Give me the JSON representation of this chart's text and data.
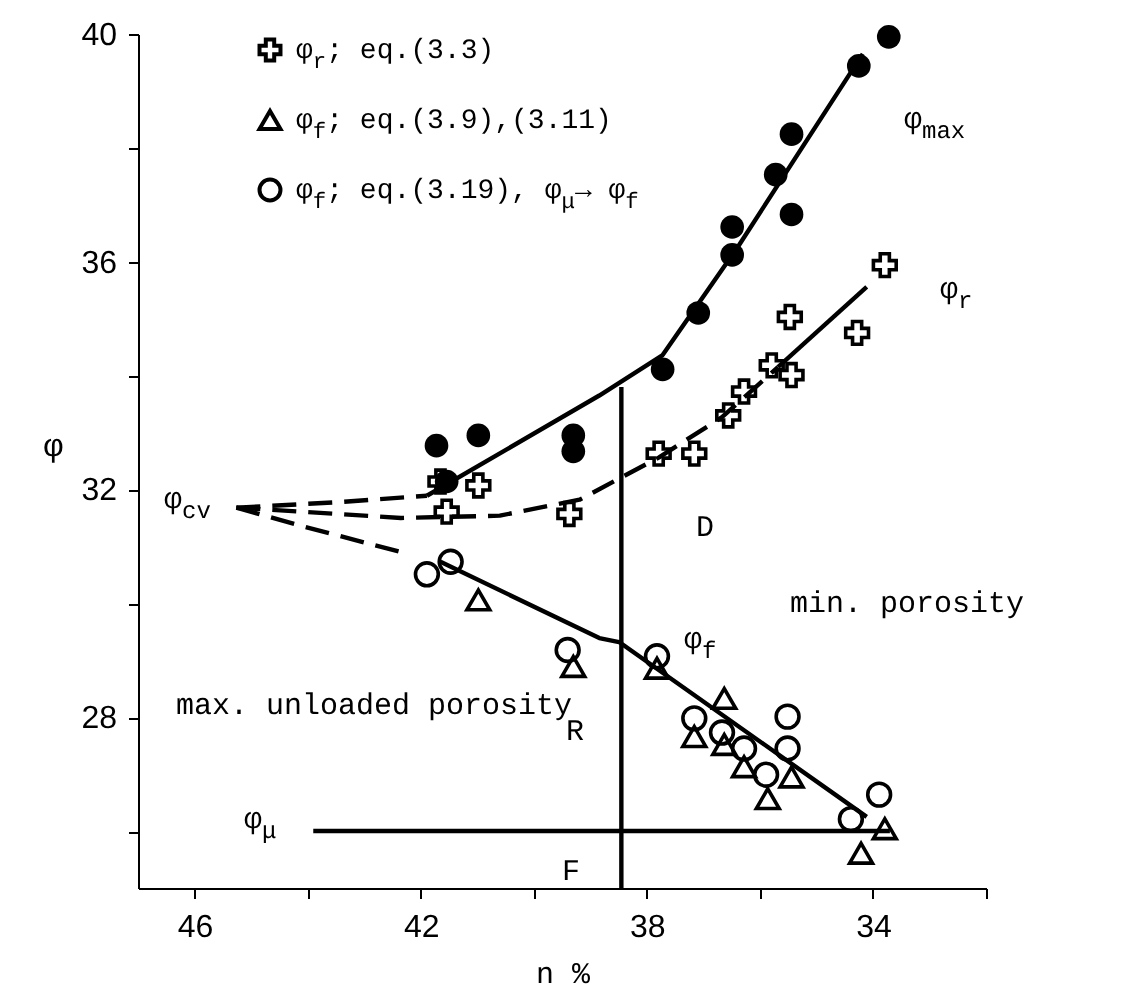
{
  "chart_data": {
    "type": "scatter",
    "xlabel": "n %",
    "ylabel": "φ",
    "xlim": [
      47,
      32
    ],
    "xticks": [
      46,
      {
        "value": 44,
        "label": null
      },
      42,
      {
        "value": 40,
        "label": null
      },
      38,
      {
        "value": 36,
        "label": null
      },
      34,
      {
        "value": 32,
        "label": null
      }
    ],
    "ylim": [
      25,
      40
    ],
    "yticks": [
      {
        "value": 26,
        "label": null
      },
      28,
      {
        "value": 30,
        "label": null
      },
      32,
      {
        "value": 34,
        "label": null
      },
      36,
      {
        "value": 38,
        "label": null
      },
      40
    ],
    "grid": false,
    "legend": "top left",
    "series": [
      {
        "name": "φ$_{r}$; eq.(3.3)",
        "marker": "cross",
        "color": "#000000",
        "x": [
          33.79,
          35.47,
          34.28,
          35.79,
          35.44,
          36.28,
          36.56,
          37.16,
          37.79,
          40.98,
          41.65,
          39.37,
          41.54
        ],
        "values": [
          35.94,
          35.03,
          34.75,
          34.18,
          34.01,
          33.72,
          33.3,
          32.63,
          32.63,
          32.07,
          32.14,
          31.57,
          31.61
        ]
      },
      {
        "name": "φ$_{f}$; eq.(3.9),(3.11)",
        "marker": "triangle",
        "color": "#000000",
        "x": [
          40.98,
          39.3,
          37.82,
          36.63,
          37.16,
          36.63,
          36.28,
          35.86,
          35.44,
          34.21,
          33.79
        ],
        "values": [
          30.06,
          28.89,
          28.86,
          28.33,
          27.66,
          27.52,
          27.13,
          26.57,
          26.95,
          25.61,
          26.04
        ]
      },
      {
        "name": "φ$_{f}$; eq.(3.19), φ$_{μ}$→ φ$_{f}$",
        "marker": "circle",
        "color": "#000000",
        "x": [
          41.89,
          41.47,
          39.4,
          37.82,
          37.16,
          36.67,
          36.28,
          35.89,
          35.51,
          35.51,
          34.39,
          33.89
        ],
        "values": [
          30.51,
          30.73,
          29.18,
          29.07,
          27.98,
          27.73,
          27.45,
          26.99,
          28.01,
          27.45,
          26.21,
          26.64
        ]
      },
      {
        "marker": "circle",
        "color": "#000000",
        "x": [
          41.72,
          40.98,
          39.3,
          39.3,
          41.54,
          37.72,
          37.09,
          36.49,
          36.49,
          35.72,
          35.44,
          35.44,
          34.25,
          33.72
        ],
        "values": [
          32.77,
          32.95,
          32.95,
          32.67,
          32.14,
          34.11,
          35.1,
          36.12,
          36.61,
          37.53,
          36.83,
          38.24,
          39.44,
          39.95
        ]
      },
      {
        "type": "line",
        "line_style": "dashed",
        "color": "#000000",
        "x": [
          45.26,
          43.4,
          41.89
        ],
        "values": [
          31.68,
          31.78,
          31.89
        ]
      },
      {
        "type": "line",
        "line_style": "solid",
        "color": "#000000",
        "x": [
          41.89,
          38.84,
          37.72,
          36.39,
          34.18
        ],
        "values": [
          31.89,
          33.65,
          34.36,
          36.26,
          39.65
        ]
      },
      {
        "type": "line",
        "line_style": "dashed",
        "color": "#000000",
        "x": [
          45.26,
          42.35,
          40.6,
          39.19,
          37.79,
          36.67,
          35.68
        ],
        "values": [
          31.68,
          31.5,
          31.54,
          31.82,
          32.56,
          33.27,
          34.15
        ]
      },
      {
        "type": "line",
        "line_style": "solid",
        "color": "#000000",
        "x": [
          35.68,
          34.11
        ],
        "values": [
          34.15,
          35.56
        ]
      },
      {
        "type": "line",
        "line_style": "dashed",
        "color": "#000000",
        "x": [
          45.26,
          44.11,
          42.35
        ],
        "values": [
          31.68,
          31.36,
          30.9
        ]
      },
      {
        "type": "line",
        "line_style": "solid",
        "color": "#000000",
        "x": [
          41.65,
          38.84,
          38.49,
          34.11
        ],
        "values": [
          30.73,
          29.39,
          29.32,
          26.25
        ]
      },
      {
        "type": "line",
        "line_style": "solid",
        "color": "#000000",
        "x": [
          43.9,
          33.7
        ],
        "values": [
          26,
          26
        ]
      },
      {
        "type": "line",
        "line_style": "solid",
        "color": "#000000",
        "x": [
          38.45,
          38.45
        ],
        "values": [
          33.8,
          25
        ]
      }
    ],
    "annotations": [
      "φ$_{max}$",
      "φ$_{r}$",
      "φ$_{f}$",
      "φ$_{cv}$",
      "φ$_{μ}$",
      "D",
      "R",
      "F",
      "max. unloaded porosity",
      "min. porosity"
    ]
  }
}
